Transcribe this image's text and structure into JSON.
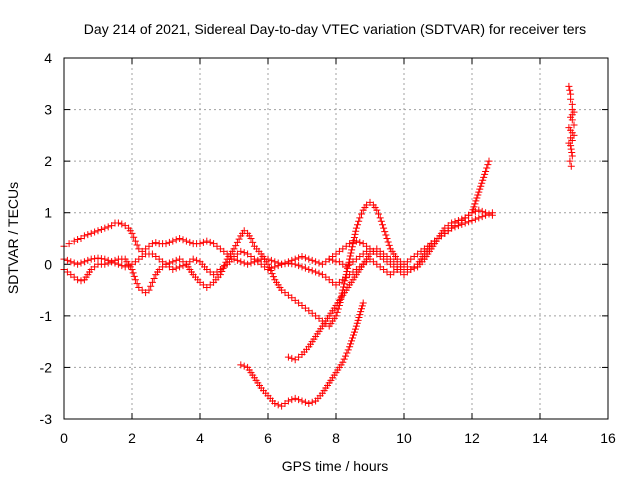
{
  "chart_data": {
    "type": "scatter",
    "title": "Day 214 of 2021, Sidereal Day-to-day VTEC variation (SDTVAR) for receiver ters",
    "xlabel": "GPS time / hours",
    "ylabel": "SDTVAR / TECUs",
    "xlim": [
      0,
      16
    ],
    "ylim": [
      -3,
      4
    ],
    "xticks": [
      0,
      2,
      4,
      6,
      8,
      10,
      12,
      14,
      16
    ],
    "yticks": [
      -3,
      -2,
      -1,
      0,
      1,
      2,
      3,
      4
    ],
    "grid": true,
    "marker": "+",
    "colors": {
      "series": "#ff0000",
      "grid": "#a0a0a0",
      "axes": "#000000"
    },
    "series": [
      {
        "x": [
          0.0,
          0.15,
          0.3,
          0.4,
          0.5,
          0.6,
          0.8,
          1.0,
          1.2,
          1.4,
          1.5,
          1.6,
          1.7,
          1.8,
          1.9,
          2.0,
          2.1,
          2.2,
          2.3,
          2.4,
          2.5,
          2.6,
          2.7,
          2.8,
          3.0,
          3.2,
          3.4,
          3.6,
          3.8,
          4.0,
          4.2,
          4.4,
          4.6,
          4.8,
          5.0,
          5.2,
          5.4,
          5.6,
          5.8,
          6.0,
          6.2,
          6.4,
          6.6,
          6.8,
          7.0,
          7.2,
          7.4,
          7.6,
          7.8,
          8.0,
          8.2,
          8.4,
          8.6,
          8.8,
          9.0,
          9.2,
          9.4,
          9.6,
          9.8,
          10.0,
          10.2,
          10.4,
          10.6,
          10.8,
          11.0,
          11.2,
          11.4,
          11.6,
          11.8,
          12.0,
          12.2,
          12.4,
          12.6
        ],
        "y": [
          0.35,
          0.4,
          0.45,
          0.48,
          0.5,
          0.55,
          0.6,
          0.65,
          0.7,
          0.75,
          0.8,
          0.8,
          0.78,
          0.75,
          0.7,
          0.6,
          0.45,
          0.3,
          0.25,
          0.3,
          0.35,
          0.4,
          0.42,
          0.4,
          0.4,
          0.45,
          0.5,
          0.45,
          0.4,
          0.4,
          0.45,
          0.4,
          0.3,
          0.2,
          0.1,
          0.05,
          0.0,
          0.05,
          0.1,
          0.1,
          0.05,
          0.0,
          0.02,
          0.0,
          -0.05,
          -0.1,
          -0.15,
          -0.2,
          -0.3,
          -0.4,
          -0.3,
          -0.2,
          -0.1,
          0.0,
          0.1,
          0.0,
          -0.1,
          -0.2,
          -0.1,
          0.0,
          0.1,
          0.2,
          0.3,
          0.4,
          0.5,
          0.6,
          0.7,
          0.8,
          0.9,
          1.0,
          1.05,
          1.0,
          0.95
        ]
      },
      {
        "x": [
          0.0,
          0.1,
          0.2,
          0.3,
          0.4,
          0.5,
          0.6,
          0.8,
          1.0,
          1.2,
          1.4,
          1.6,
          1.8,
          2.0,
          2.1,
          2.2,
          2.3,
          2.4,
          2.5,
          2.6,
          2.7,
          2.8,
          3.0,
          3.2,
          3.4,
          3.6,
          3.8,
          4.0,
          4.2,
          4.4,
          4.6,
          4.8,
          5.0,
          5.2,
          5.3,
          5.4,
          5.5,
          5.6,
          5.8,
          6.0,
          6.2,
          6.4,
          6.6,
          6.8,
          7.0,
          7.2,
          7.4,
          7.6,
          7.8,
          8.0,
          8.1,
          8.2,
          8.3,
          8.4,
          8.5,
          8.6,
          8.7,
          8.8,
          8.9,
          9.0,
          9.1,
          9.2,
          9.3,
          9.4,
          9.5,
          9.6,
          9.8,
          10.0,
          10.2,
          10.4,
          10.6,
          10.8,
          11.0,
          11.2,
          11.4,
          11.6,
          11.8,
          12.0,
          12.2,
          12.4,
          12.5
        ],
        "y": [
          -0.1,
          -0.15,
          -0.2,
          -0.25,
          -0.3,
          -0.32,
          -0.3,
          -0.1,
          0.0,
          0.0,
          0.05,
          0.1,
          0.1,
          -0.1,
          -0.3,
          -0.45,
          -0.5,
          -0.55,
          -0.5,
          -0.35,
          -0.2,
          -0.1,
          0.0,
          0.05,
          0.1,
          0.0,
          -0.2,
          -0.35,
          -0.45,
          -0.35,
          -0.2,
          0.1,
          0.3,
          0.55,
          0.65,
          0.6,
          0.5,
          0.35,
          0.2,
          0.0,
          -0.3,
          -0.5,
          -0.6,
          -0.7,
          -0.8,
          -0.9,
          -1.0,
          -1.1,
          -1.2,
          -1.0,
          -0.8,
          -0.5,
          -0.2,
          0.1,
          0.4,
          0.7,
          0.9,
          1.05,
          1.15,
          1.2,
          1.15,
          1.05,
          0.9,
          0.7,
          0.5,
          0.3,
          0.1,
          0.0,
          -0.1,
          -0.05,
          0.1,
          0.3,
          0.5,
          0.7,
          0.8,
          0.85,
          0.9,
          1.0,
          1.4,
          1.8,
          2.0
        ]
      },
      {
        "x": [
          0.0,
          0.2,
          0.4,
          0.6,
          0.8,
          1.0,
          1.2,
          1.4,
          1.6,
          1.8,
          2.0,
          2.2,
          2.4,
          2.6,
          2.8,
          3.0,
          3.2,
          3.4,
          3.6,
          3.8,
          4.0,
          4.2,
          4.4,
          4.6,
          4.8,
          5.0,
          5.2,
          5.4,
          5.6,
          5.8,
          6.0,
          6.2,
          6.4,
          6.6,
          6.8,
          7.0,
          7.2,
          7.4,
          7.6,
          7.8,
          8.0,
          8.2,
          8.4,
          8.6,
          8.8,
          9.0,
          9.2,
          9.4,
          9.6,
          9.8,
          10.0,
          10.2,
          10.4,
          10.6,
          10.8,
          11.0,
          11.2,
          11.4,
          11.6,
          11.8,
          12.0,
          12.2,
          12.4,
          12.6
        ],
        "y": [
          0.1,
          0.05,
          0.0,
          0.05,
          0.1,
          0.12,
          0.1,
          0.05,
          0.0,
          -0.05,
          0.0,
          0.1,
          0.2,
          0.2,
          0.1,
          0.0,
          -0.1,
          -0.05,
          0.0,
          0.1,
          0.05,
          -0.1,
          -0.2,
          -0.1,
          0.0,
          0.15,
          0.25,
          0.2,
          0.1,
          0.0,
          -0.1,
          -0.05,
          0.0,
          0.05,
          0.1,
          0.15,
          0.1,
          0.05,
          0.0,
          0.1,
          0.2,
          0.3,
          0.4,
          0.45,
          0.4,
          0.3,
          0.2,
          0.1,
          0.0,
          -0.1,
          -0.2,
          -0.1,
          0.0,
          0.2,
          0.4,
          0.5,
          0.6,
          0.7,
          0.75,
          0.8,
          0.85,
          0.9,
          0.95,
          1.0
        ]
      },
      {
        "x": [
          6.6,
          6.8,
          7.0,
          7.2,
          7.4,
          7.6,
          7.8,
          8.0,
          8.2,
          8.4,
          8.6,
          8.8,
          9.0,
          9.2,
          9.4,
          9.6,
          9.8,
          10.0
        ],
        "y": [
          -1.8,
          -1.85,
          -1.75,
          -1.6,
          -1.4,
          -1.2,
          -1.0,
          -0.8,
          -0.6,
          -0.4,
          -0.2,
          0.0,
          0.2,
          0.3,
          0.2,
          0.1,
          0.0,
          -0.1
        ]
      },
      {
        "x": [
          5.2,
          5.4,
          5.6,
          5.8,
          6.0,
          6.2,
          6.4,
          6.6,
          6.8,
          7.0,
          7.2,
          7.4,
          7.6,
          7.8,
          8.0,
          8.2,
          8.4,
          8.6,
          8.8
        ],
        "y": [
          -1.95,
          -2.0,
          -2.2,
          -2.4,
          -2.55,
          -2.7,
          -2.75,
          -2.65,
          -2.6,
          -2.65,
          -2.7,
          -2.65,
          -2.5,
          -2.3,
          -2.1,
          -1.9,
          -1.6,
          -1.2,
          -0.75
        ]
      },
      {
        "x": [
          7.8,
          7.9,
          8.0,
          8.1,
          8.2,
          8.3,
          8.4,
          8.5,
          8.6,
          8.7,
          8.8,
          8.9,
          9.0
        ],
        "y": [
          0.1,
          0.08,
          0.05,
          0.05,
          0.0,
          -0.05,
          0.0,
          0.05,
          0.1,
          0.15,
          0.2,
          0.25,
          0.3
        ]
      },
      {
        "x": [
          14.85,
          14.9,
          14.9,
          14.95,
          14.95,
          15.0,
          14.9,
          14.95,
          15.0,
          14.85,
          14.9,
          14.95,
          15.0,
          14.9,
          14.95,
          14.85,
          14.9,
          14.95,
          14.88,
          14.92
        ],
        "y": [
          3.45,
          3.3,
          3.2,
          3.1,
          3.0,
          2.95,
          2.85,
          2.8,
          2.7,
          2.65,
          2.6,
          2.55,
          2.5,
          2.45,
          2.4,
          2.35,
          2.3,
          2.1,
          2.0,
          1.9
        ]
      }
    ]
  }
}
